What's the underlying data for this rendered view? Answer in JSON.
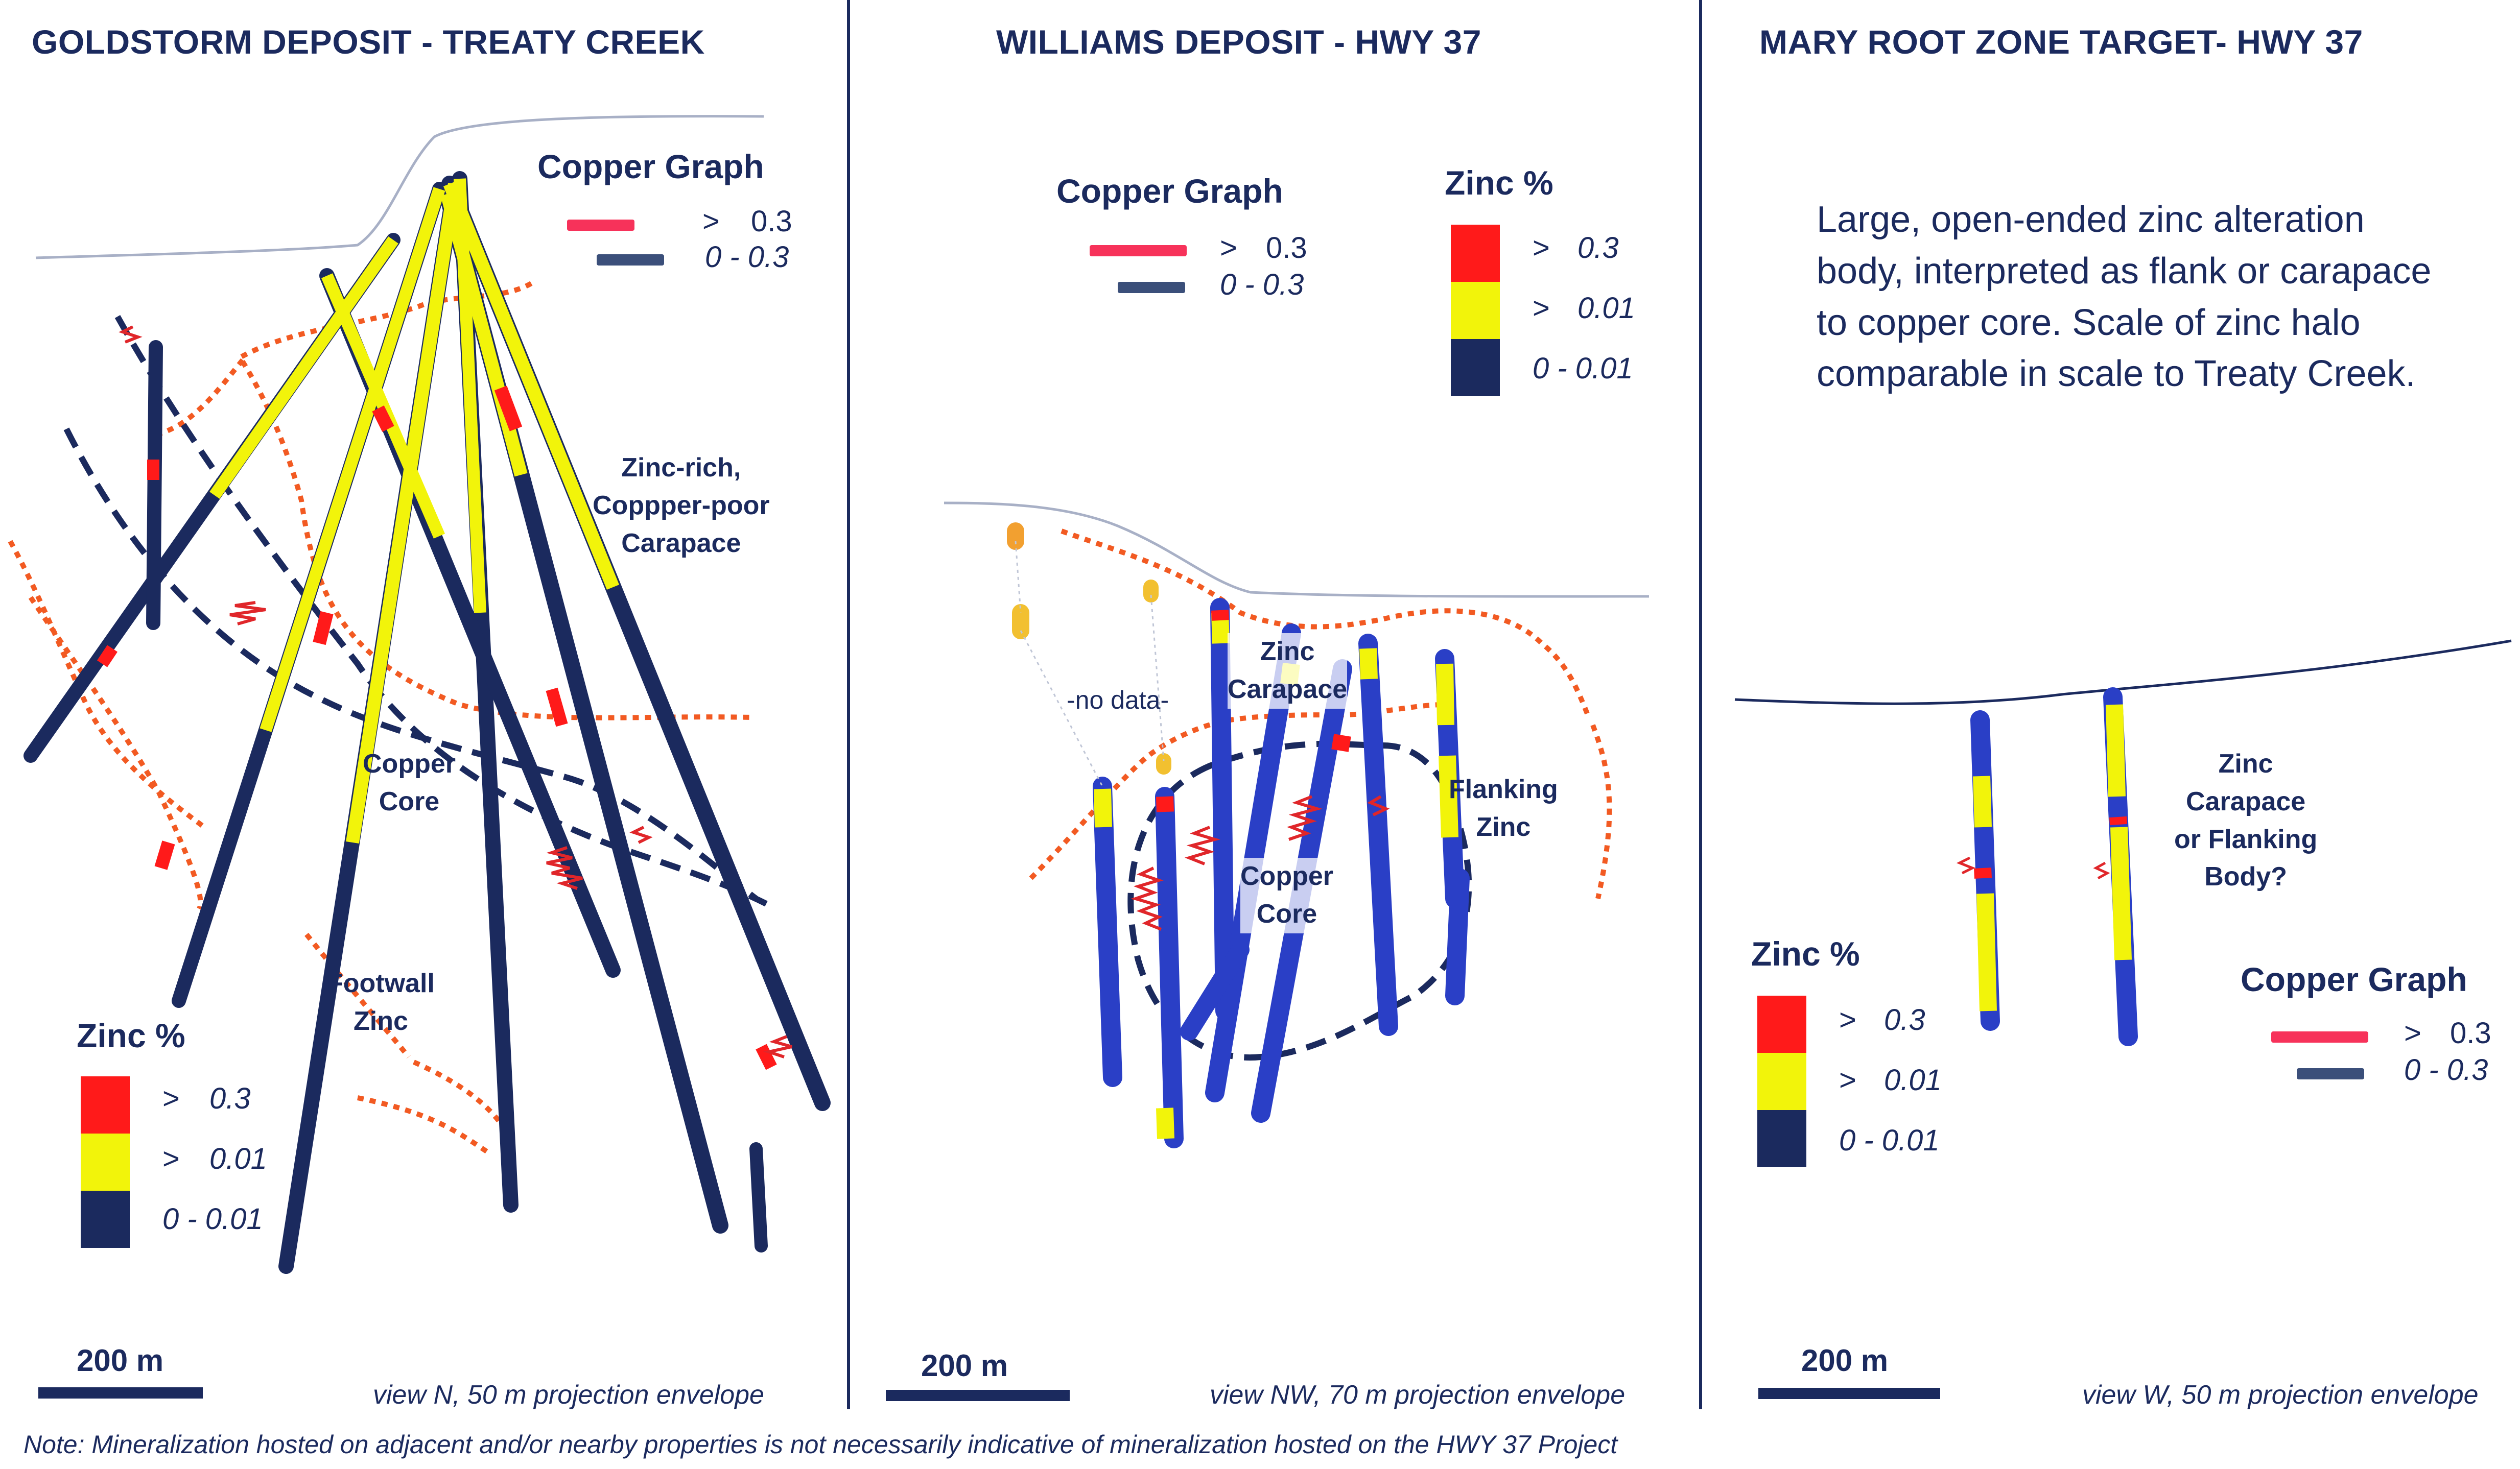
{
  "colors": {
    "navy": "#1b2a5e",
    "zinc_high": "#ff1a1a",
    "zinc_mid": "#f2f40a",
    "zinc_low": "#1b2a5e",
    "copper_high": "#f7325a",
    "copper_low": "#3b4f7a",
    "contour": "#f25a22",
    "drill_blue": "#2a3fc6",
    "topography": "#a8b0c6"
  },
  "panels": [
    {
      "title": "GOLDSTORM DEPOSIT - TREATY CREEK",
      "copper_graph": {
        "title": "Copper Graph",
        "high": {
          "symbol": ">",
          "value": "0.3"
        },
        "low": {
          "value": "0 - 0.3"
        }
      },
      "zinc": {
        "title": "Zinc %",
        "high": {
          "symbol": ">",
          "value": "0.3"
        },
        "mid": {
          "symbol": ">",
          "value": "0.01"
        },
        "low": {
          "value": "0 - 0.01"
        }
      },
      "annotations": {
        "carapace": [
          "Zinc-rich,",
          "Coppper-poor",
          "Carapace"
        ],
        "core": [
          "Copper",
          "Core"
        ],
        "footwall": [
          "Footwall",
          "Zinc"
        ]
      },
      "scale": "200 m",
      "view": "view N, 50 m projection envelope"
    },
    {
      "title": "WILLIAMS DEPOSIT - HWY 37",
      "copper_graph": {
        "title": "Copper Graph",
        "high": {
          "symbol": ">",
          "value": "0.3"
        },
        "low": {
          "value": "0 - 0.3"
        }
      },
      "zinc": {
        "title": "Zinc %",
        "high": {
          "symbol": ">",
          "value": "0.3"
        },
        "mid": {
          "symbol": ">",
          "value": "0.01"
        },
        "low": {
          "value": "0 - 0.01"
        }
      },
      "annotations": {
        "no_data": "-no data-",
        "carapace": [
          "Zinc",
          "Carapace"
        ],
        "core": [
          "Copper",
          "Core"
        ],
        "flanking": [
          "Flanking",
          "Zinc"
        ]
      },
      "scale": "200 m",
      "view": "view NW, 70 m projection envelope"
    },
    {
      "title": "MARY ROOT ZONE TARGET- HWY 37",
      "description": [
        "Large, open-ended zinc alteration",
        "body, interpreted as flank or carapace",
        "to copper core. Scale of zinc halo",
        "comparable in scale to Treaty Creek."
      ],
      "copper_graph": {
        "title": "Copper Graph",
        "high": {
          "symbol": ">",
          "value": "0.3"
        },
        "low": {
          "value": "0 - 0.3"
        }
      },
      "zinc": {
        "title": "Zinc %",
        "high": {
          "symbol": ">",
          "value": "0.3"
        },
        "mid": {
          "symbol": ">",
          "value": "0.01"
        },
        "low": {
          "value": "0 - 0.01"
        }
      },
      "annotations": {
        "carapace": [
          "Zinc",
          "Carapace",
          "or Flanking",
          "Body?"
        ]
      },
      "scale": "200 m",
      "view": "view W, 50 m projection envelope"
    }
  ],
  "footnote": "Note: Mineralization hosted on adjacent and/or nearby properties is not necessarily indicative of mineralization hosted on the HWY 37 Project"
}
